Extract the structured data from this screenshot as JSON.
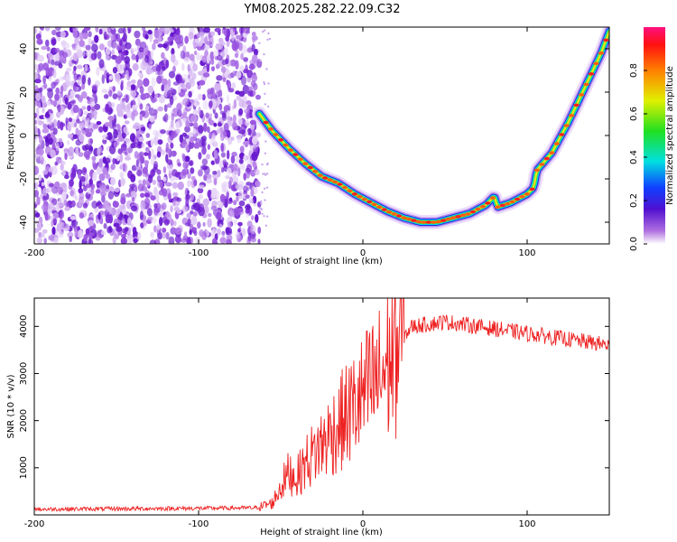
{
  "title": "YM08.2025.282.22.09.C32",
  "chart_data": [
    {
      "type": "heatmap",
      "xlabel": "Height of straight line (km)",
      "ylabel": "Frequency (Hz)",
      "xlim": [
        -200,
        150
      ],
      "ylim": [
        -50,
        50
      ],
      "xticks": [
        "-200",
        "-100",
        "0",
        "100"
      ],
      "yticks": [
        "-40",
        "-20",
        "0",
        "20",
        "40"
      ],
      "colorbar": {
        "label": "Normalized spectral amplitude",
        "ticks": [
          "0.0",
          "0.2",
          "0.4",
          "0.6",
          "0.8"
        ],
        "range": [
          0,
          1
        ]
      },
      "noise_region_x": [
        -200,
        -63
      ],
      "ridge": {
        "x": [
          -63,
          -55,
          -45,
          -35,
          -25,
          -15,
          -5,
          5,
          15,
          25,
          35,
          45,
          55,
          65,
          75,
          80,
          82,
          90,
          100,
          104,
          106,
          115,
          125,
          135,
          145,
          150
        ],
        "y": [
          10,
          2,
          -6,
          -13,
          -19,
          -22,
          -27,
          -31,
          -35,
          -38,
          -40,
          -40,
          -38,
          -36,
          -32,
          -28,
          -33,
          -31,
          -27,
          -24,
          -16,
          -8,
          6,
          22,
          38,
          48
        ]
      },
      "grid": false
    },
    {
      "type": "line",
      "xlabel": "Height of straight line (km)",
      "ylabel": "SNR (10 * v/v)",
      "xlim": [
        -200,
        150
      ],
      "ylim": [
        0,
        4600
      ],
      "xticks": [
        "-200",
        "-100",
        "0",
        "100"
      ],
      "yticks": [
        "1000",
        "2000",
        "3000",
        "4000"
      ],
      "series": [
        {
          "color": "#ee2222",
          "x": [
            -200,
            -150,
            -100,
            -65,
            -55,
            -50,
            -45,
            -40,
            -35,
            -30,
            -25,
            -20,
            -15,
            -10,
            -5,
            0,
            5,
            10,
            15,
            20,
            25,
            30,
            40,
            50,
            60,
            70,
            80,
            90,
            100,
            110,
            120,
            130,
            140,
            150
          ],
          "y": [
            120,
            130,
            140,
            150,
            250,
            600,
            900,
            800,
            1100,
            1300,
            1500,
            1700,
            1900,
            2100,
            2300,
            2500,
            2700,
            2900,
            3200,
            3500,
            3800,
            4000,
            4050,
            4100,
            4050,
            4000,
            3950,
            3900,
            3850,
            3800,
            3750,
            3700,
            3650,
            3600
          ]
        }
      ],
      "grid": false
    }
  ]
}
